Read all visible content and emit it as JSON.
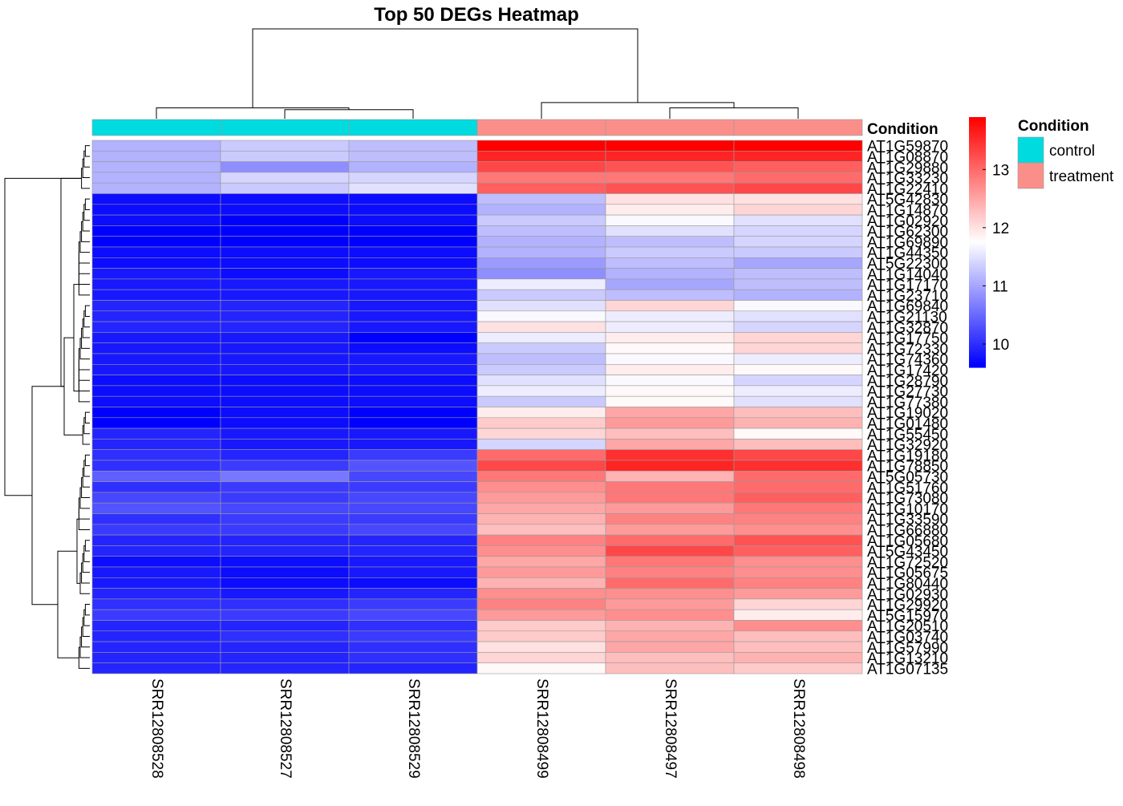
{
  "chart_data": {
    "type": "heatmap",
    "title": "Top 50 DEGs Heatmap",
    "columns": [
      "SRR12808528",
      "SRR12808527",
      "SRR12808529",
      "SRR12808499",
      "SRR12808497",
      "SRR12808498"
    ],
    "rows": [
      "AT1G59870",
      "AT1G08870",
      "AT1G29880",
      "AT1G33230",
      "AT1G22410",
      "AT5G42830",
      "AT1G14870",
      "AT1G02920",
      "AT1G62300",
      "AT1G69890",
      "AT1G44350",
      "AT5G22300",
      "AT1G14040",
      "AT1G17170",
      "AT1G23710",
      "AT1G69840",
      "AT1G21130",
      "AT1G32870",
      "AT1G17750",
      "AT1G72330",
      "AT1G74360",
      "AT1G17420",
      "AT1G28790",
      "AT1G27730",
      "AT1G77380",
      "AT1G19020",
      "AT1G01480",
      "AT1G55450",
      "AT1G32920",
      "AT1G19180",
      "AT1G78850",
      "AT5G05730",
      "AT1G51760",
      "AT1G73080",
      "AT1G10170",
      "AT1G33590",
      "AT1G66880",
      "AT1G05680",
      "AT5G43450",
      "AT1G72520",
      "AT1G05675",
      "AT1G80440",
      "AT1G02930",
      "AT1G29920",
      "AT5G15970",
      "AT1G20510",
      "AT1G03740",
      "AT1G57990",
      "AT1G13210",
      "AT1G07135"
    ],
    "values": [
      [
        11.1,
        11.3,
        11.2,
        13.9,
        13.9,
        13.9
      ],
      [
        11.1,
        11.3,
        11.2,
        13.6,
        13.6,
        13.6
      ],
      [
        11.1,
        10.8,
        11.1,
        13.3,
        13.2,
        13.1
      ],
      [
        11.1,
        11.4,
        11.4,
        12.9,
        12.9,
        13.0
      ],
      [
        11.1,
        11.3,
        11.5,
        13.1,
        13.2,
        13.3
      ],
      [
        9.7,
        9.7,
        9.7,
        11.2,
        12.0,
        12.0
      ],
      [
        9.7,
        9.7,
        9.7,
        11.1,
        11.9,
        12.1
      ],
      [
        9.7,
        9.6,
        9.7,
        11.3,
        11.7,
        11.5
      ],
      [
        9.6,
        9.6,
        9.6,
        11.2,
        11.5,
        11.4
      ],
      [
        9.6,
        9.6,
        9.6,
        11.1,
        11.2,
        11.4
      ],
      [
        9.7,
        9.7,
        9.7,
        11.1,
        11.3,
        11.3
      ],
      [
        9.7,
        9.7,
        9.7,
        10.9,
        11.2,
        11.0
      ],
      [
        9.8,
        9.7,
        9.8,
        10.8,
        11.1,
        11.2
      ],
      [
        9.8,
        9.8,
        9.8,
        11.6,
        11.0,
        11.2
      ],
      [
        9.8,
        9.8,
        9.8,
        11.3,
        11.2,
        11.1
      ],
      [
        9.9,
        9.9,
        9.8,
        11.5,
        12.1,
        11.7
      ],
      [
        9.9,
        9.9,
        9.8,
        11.7,
        11.6,
        11.5
      ],
      [
        9.9,
        9.9,
        9.8,
        12.0,
        11.6,
        11.4
      ],
      [
        9.8,
        9.8,
        9.6,
        11.6,
        11.9,
        12.1
      ],
      [
        9.8,
        9.8,
        9.7,
        11.3,
        11.8,
        12.1
      ],
      [
        9.8,
        9.8,
        9.8,
        11.2,
        11.7,
        11.6
      ],
      [
        9.8,
        9.8,
        9.8,
        11.3,
        11.9,
        11.8
      ],
      [
        9.7,
        9.7,
        9.7,
        11.5,
        11.7,
        11.4
      ],
      [
        9.7,
        9.7,
        9.7,
        11.6,
        11.8,
        11.6
      ],
      [
        9.7,
        9.7,
        9.7,
        11.3,
        11.8,
        11.5
      ],
      [
        9.6,
        9.7,
        9.6,
        11.9,
        12.5,
        12.3
      ],
      [
        9.6,
        9.7,
        9.6,
        12.2,
        12.6,
        12.4
      ],
      [
        9.9,
        9.8,
        9.8,
        12.1,
        12.3,
        11.8
      ],
      [
        9.9,
        9.8,
        9.8,
        11.4,
        12.5,
        12.3
      ],
      [
        10.0,
        9.9,
        10.1,
        13.0,
        13.5,
        13.3
      ],
      [
        10.0,
        10.1,
        10.3,
        13.3,
        13.6,
        13.5
      ],
      [
        10.4,
        10.6,
        10.2,
        12.9,
        12.4,
        13.0
      ],
      [
        10.0,
        10.1,
        10.1,
        12.7,
        12.9,
        13.0
      ],
      [
        10.2,
        10.1,
        10.2,
        12.6,
        12.9,
        13.1
      ],
      [
        10.3,
        10.2,
        10.2,
        12.5,
        12.6,
        12.9
      ],
      [
        10.0,
        10.1,
        10.1,
        12.4,
        12.8,
        12.8
      ],
      [
        10.1,
        10.1,
        10.2,
        12.3,
        12.6,
        12.7
      ],
      [
        9.9,
        9.9,
        9.9,
        12.8,
        13.0,
        13.2
      ],
      [
        9.9,
        9.9,
        9.9,
        12.7,
        13.3,
        13.1
      ],
      [
        9.7,
        9.7,
        9.8,
        12.5,
        12.9,
        12.7
      ],
      [
        9.8,
        9.7,
        9.8,
        12.6,
        12.8,
        12.7
      ],
      [
        9.8,
        9.7,
        9.7,
        12.4,
        13.0,
        12.8
      ],
      [
        9.9,
        9.8,
        9.9,
        12.7,
        12.7,
        12.6
      ],
      [
        10.0,
        10.0,
        10.1,
        12.8,
        12.6,
        12.1
      ],
      [
        10.1,
        10.1,
        10.2,
        12.6,
        12.7,
        11.9
      ],
      [
        9.9,
        9.9,
        10.0,
        12.2,
        12.4,
        12.7
      ],
      [
        9.9,
        10.0,
        10.1,
        12.2,
        12.5,
        12.3
      ],
      [
        9.9,
        9.9,
        10.0,
        12.0,
        12.5,
        12.3
      ],
      [
        9.9,
        9.9,
        10.0,
        12.1,
        12.3,
        12.4
      ],
      [
        9.9,
        9.9,
        9.9,
        11.8,
        12.3,
        12.2
      ]
    ],
    "color_scale": {
      "low": "#0000ff",
      "mid": "#ffffff",
      "high": "#ff0000",
      "min": 9.6,
      "mid_value": 11.75,
      "max": 13.9
    },
    "colorbar_ticks": [
      10,
      11,
      12,
      13
    ],
    "annotation": {
      "title": "Condition",
      "groups": [
        {
          "label": "control",
          "color": "#00dbe0"
        },
        {
          "label": "treatment",
          "color": "#fa8f89"
        }
      ],
      "column_groups": [
        "control",
        "control",
        "control",
        "treatment",
        "treatment",
        "treatment"
      ]
    },
    "col_dendrogram": [
      [
        1,
        2
      ],
      [
        0,
        -1
      ],
      [
        4,
        5
      ],
      [
        3,
        -3
      ],
      [
        -2,
        -4
      ]
    ],
    "col_dendrogram_heights": [
      0.1,
      0.12,
      0.12,
      0.18,
      1.0
    ],
    "row_dendrogram_groups": [
      [
        0,
        1,
        2,
        3,
        4
      ],
      [
        5,
        6,
        7,
        8,
        9,
        10,
        11,
        12,
        13,
        14
      ],
      [
        15,
        16,
        17,
        18,
        19,
        20,
        21,
        22,
        23,
        24
      ],
      [
        25,
        26,
        27,
        28
      ],
      [
        29,
        30,
        31,
        32,
        33,
        34,
        35,
        36
      ],
      [
        37,
        38,
        39,
        40,
        41,
        42
      ],
      [
        43,
        44,
        45,
        46,
        47,
        48,
        49
      ]
    ],
    "grid": true,
    "legend_position": "right"
  }
}
